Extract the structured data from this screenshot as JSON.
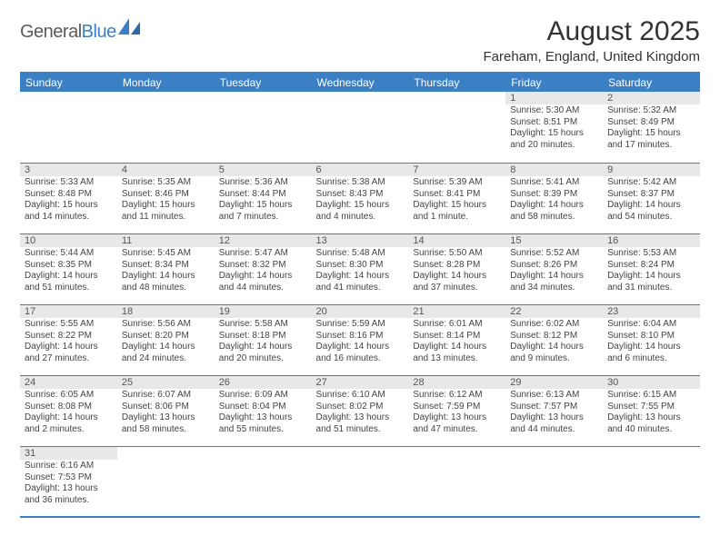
{
  "brand": {
    "name1": "General",
    "name2": "Blue"
  },
  "title": "August 2025",
  "location": "Fareham, England, United Kingdom",
  "colors": {
    "accent": "#3b7fc4",
    "header_row_bg": "#e8e8e8",
    "text": "#333333",
    "cell_text": "#444444",
    "background": "#ffffff"
  },
  "day_headers": [
    "Sunday",
    "Monday",
    "Tuesday",
    "Wednesday",
    "Thursday",
    "Friday",
    "Saturday"
  ],
  "weeks": [
    [
      null,
      null,
      null,
      null,
      null,
      {
        "n": "1",
        "sunrise": "Sunrise: 5:30 AM",
        "sunset": "Sunset: 8:51 PM",
        "day1": "Daylight: 15 hours",
        "day2": "and 20 minutes."
      },
      {
        "n": "2",
        "sunrise": "Sunrise: 5:32 AM",
        "sunset": "Sunset: 8:49 PM",
        "day1": "Daylight: 15 hours",
        "day2": "and 17 minutes."
      }
    ],
    [
      {
        "n": "3",
        "sunrise": "Sunrise: 5:33 AM",
        "sunset": "Sunset: 8:48 PM",
        "day1": "Daylight: 15 hours",
        "day2": "and 14 minutes."
      },
      {
        "n": "4",
        "sunrise": "Sunrise: 5:35 AM",
        "sunset": "Sunset: 8:46 PM",
        "day1": "Daylight: 15 hours",
        "day2": "and 11 minutes."
      },
      {
        "n": "5",
        "sunrise": "Sunrise: 5:36 AM",
        "sunset": "Sunset: 8:44 PM",
        "day1": "Daylight: 15 hours",
        "day2": "and 7 minutes."
      },
      {
        "n": "6",
        "sunrise": "Sunrise: 5:38 AM",
        "sunset": "Sunset: 8:43 PM",
        "day1": "Daylight: 15 hours",
        "day2": "and 4 minutes."
      },
      {
        "n": "7",
        "sunrise": "Sunrise: 5:39 AM",
        "sunset": "Sunset: 8:41 PM",
        "day1": "Daylight: 15 hours",
        "day2": "and 1 minute."
      },
      {
        "n": "8",
        "sunrise": "Sunrise: 5:41 AM",
        "sunset": "Sunset: 8:39 PM",
        "day1": "Daylight: 14 hours",
        "day2": "and 58 minutes."
      },
      {
        "n": "9",
        "sunrise": "Sunrise: 5:42 AM",
        "sunset": "Sunset: 8:37 PM",
        "day1": "Daylight: 14 hours",
        "day2": "and 54 minutes."
      }
    ],
    [
      {
        "n": "10",
        "sunrise": "Sunrise: 5:44 AM",
        "sunset": "Sunset: 8:35 PM",
        "day1": "Daylight: 14 hours",
        "day2": "and 51 minutes."
      },
      {
        "n": "11",
        "sunrise": "Sunrise: 5:45 AM",
        "sunset": "Sunset: 8:34 PM",
        "day1": "Daylight: 14 hours",
        "day2": "and 48 minutes."
      },
      {
        "n": "12",
        "sunrise": "Sunrise: 5:47 AM",
        "sunset": "Sunset: 8:32 PM",
        "day1": "Daylight: 14 hours",
        "day2": "and 44 minutes."
      },
      {
        "n": "13",
        "sunrise": "Sunrise: 5:48 AM",
        "sunset": "Sunset: 8:30 PM",
        "day1": "Daylight: 14 hours",
        "day2": "and 41 minutes."
      },
      {
        "n": "14",
        "sunrise": "Sunrise: 5:50 AM",
        "sunset": "Sunset: 8:28 PM",
        "day1": "Daylight: 14 hours",
        "day2": "and 37 minutes."
      },
      {
        "n": "15",
        "sunrise": "Sunrise: 5:52 AM",
        "sunset": "Sunset: 8:26 PM",
        "day1": "Daylight: 14 hours",
        "day2": "and 34 minutes."
      },
      {
        "n": "16",
        "sunrise": "Sunrise: 5:53 AM",
        "sunset": "Sunset: 8:24 PM",
        "day1": "Daylight: 14 hours",
        "day2": "and 31 minutes."
      }
    ],
    [
      {
        "n": "17",
        "sunrise": "Sunrise: 5:55 AM",
        "sunset": "Sunset: 8:22 PM",
        "day1": "Daylight: 14 hours",
        "day2": "and 27 minutes."
      },
      {
        "n": "18",
        "sunrise": "Sunrise: 5:56 AM",
        "sunset": "Sunset: 8:20 PM",
        "day1": "Daylight: 14 hours",
        "day2": "and 24 minutes."
      },
      {
        "n": "19",
        "sunrise": "Sunrise: 5:58 AM",
        "sunset": "Sunset: 8:18 PM",
        "day1": "Daylight: 14 hours",
        "day2": "and 20 minutes."
      },
      {
        "n": "20",
        "sunrise": "Sunrise: 5:59 AM",
        "sunset": "Sunset: 8:16 PM",
        "day1": "Daylight: 14 hours",
        "day2": "and 16 minutes."
      },
      {
        "n": "21",
        "sunrise": "Sunrise: 6:01 AM",
        "sunset": "Sunset: 8:14 PM",
        "day1": "Daylight: 14 hours",
        "day2": "and 13 minutes."
      },
      {
        "n": "22",
        "sunrise": "Sunrise: 6:02 AM",
        "sunset": "Sunset: 8:12 PM",
        "day1": "Daylight: 14 hours",
        "day2": "and 9 minutes."
      },
      {
        "n": "23",
        "sunrise": "Sunrise: 6:04 AM",
        "sunset": "Sunset: 8:10 PM",
        "day1": "Daylight: 14 hours",
        "day2": "and 6 minutes."
      }
    ],
    [
      {
        "n": "24",
        "sunrise": "Sunrise: 6:05 AM",
        "sunset": "Sunset: 8:08 PM",
        "day1": "Daylight: 14 hours",
        "day2": "and 2 minutes."
      },
      {
        "n": "25",
        "sunrise": "Sunrise: 6:07 AM",
        "sunset": "Sunset: 8:06 PM",
        "day1": "Daylight: 13 hours",
        "day2": "and 58 minutes."
      },
      {
        "n": "26",
        "sunrise": "Sunrise: 6:09 AM",
        "sunset": "Sunset: 8:04 PM",
        "day1": "Daylight: 13 hours",
        "day2": "and 55 minutes."
      },
      {
        "n": "27",
        "sunrise": "Sunrise: 6:10 AM",
        "sunset": "Sunset: 8:02 PM",
        "day1": "Daylight: 13 hours",
        "day2": "and 51 minutes."
      },
      {
        "n": "28",
        "sunrise": "Sunrise: 6:12 AM",
        "sunset": "Sunset: 7:59 PM",
        "day1": "Daylight: 13 hours",
        "day2": "and 47 minutes."
      },
      {
        "n": "29",
        "sunrise": "Sunrise: 6:13 AM",
        "sunset": "Sunset: 7:57 PM",
        "day1": "Daylight: 13 hours",
        "day2": "and 44 minutes."
      },
      {
        "n": "30",
        "sunrise": "Sunrise: 6:15 AM",
        "sunset": "Sunset: 7:55 PM",
        "day1": "Daylight: 13 hours",
        "day2": "and 40 minutes."
      }
    ],
    [
      {
        "n": "31",
        "sunrise": "Sunrise: 6:16 AM",
        "sunset": "Sunset: 7:53 PM",
        "day1": "Daylight: 13 hours",
        "day2": "and 36 minutes."
      },
      null,
      null,
      null,
      null,
      null,
      null
    ]
  ]
}
